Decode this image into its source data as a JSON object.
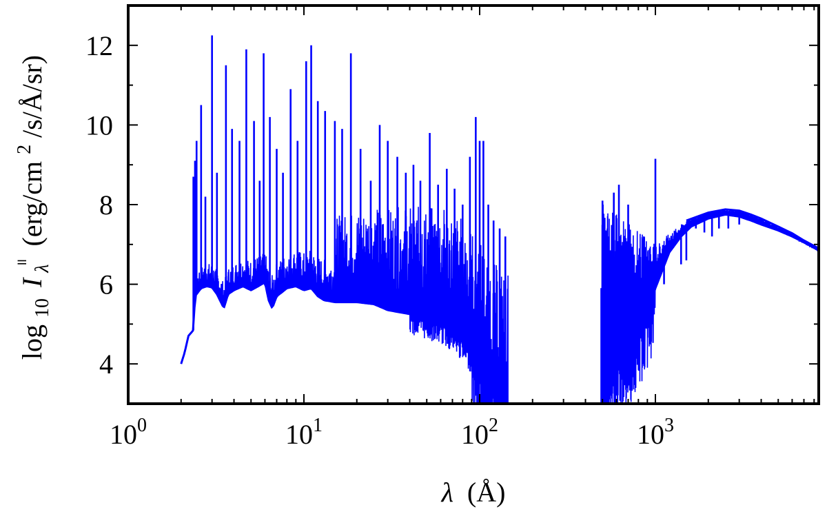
{
  "chart_data": {
    "type": "line",
    "xlabel": {
      "symbol": "λ",
      "unit": "(Å)"
    },
    "ylabel": {
      "log": "log",
      "log_sub": "10",
      "symbol": "I",
      "sub": "λ",
      "sup": "॥",
      "unit": "(erg/cm",
      "unit_sup": "2",
      "unit_rest": "/s/Å/sr)"
    },
    "xscale": "log",
    "xlim": [
      1,
      8500
    ],
    "ylim": [
      3,
      13
    ],
    "x_ticks": [
      {
        "value": 1,
        "base": "10",
        "exp": "0"
      },
      {
        "value": 10,
        "base": "10",
        "exp": "1"
      },
      {
        "value": 100,
        "base": "10",
        "exp": "2"
      },
      {
        "value": 1000,
        "base": "10",
        "exp": "3"
      }
    ],
    "y_ticks": [
      "4",
      "6",
      "8",
      "10",
      "12"
    ],
    "grid": false,
    "line_color": "#0000ff",
    "series": [
      {
        "segments": [
          {
            "continuum": [
              [
                2.0,
                4.0
              ],
              [
                2.1,
                4.3
              ],
              [
                2.2,
                4.7
              ],
              [
                2.35,
                4.85
              ],
              [
                2.4,
                5.7
              ],
              [
                2.6,
                5.9
              ],
              [
                2.8,
                5.95
              ],
              [
                3.0,
                5.92
              ],
              [
                3.2,
                5.75
              ],
              [
                3.5,
                5.4
              ],
              [
                3.7,
                5.75
              ],
              [
                4.0,
                5.85
              ],
              [
                4.5,
                5.95
              ],
              [
                5.0,
                5.85
              ],
              [
                5.5,
                5.95
              ],
              [
                6.0,
                6.05
              ],
              [
                6.3,
                5.6
              ],
              [
                6.6,
                5.4
              ],
              [
                7.0,
                5.7
              ],
              [
                7.5,
                5.8
              ],
              [
                8.0,
                5.9
              ],
              [
                9.0,
                5.95
              ],
              [
                10.0,
                5.85
              ],
              [
                11.0,
                5.9
              ],
              [
                12.0,
                5.7
              ],
              [
                13.0,
                5.6
              ],
              [
                15.0,
                5.55
              ],
              [
                20.0,
                5.55
              ],
              [
                25.0,
                5.5
              ],
              [
                30.0,
                5.35
              ],
              [
                40.0,
                5.25
              ],
              [
                50.0,
                5.1
              ],
              [
                60.0,
                5.0
              ],
              [
                70.0,
                4.8
              ],
              [
                80.0,
                4.55
              ],
              [
                90.0,
                4.25
              ],
              [
                100.0,
                3.9
              ],
              [
                110.0,
                3.5
              ],
              [
                120.0,
                3.2
              ],
              [
                130.0,
                3.0
              ],
              [
                145.0,
                2.9
              ]
            ],
            "lines": [
              [
                2.35,
                8.7
              ],
              [
                2.4,
                9.1
              ],
              [
                2.45,
                9.6
              ],
              [
                2.6,
                10.5
              ],
              [
                2.75,
                8.2
              ],
              [
                3.0,
                12.25
              ],
              [
                3.2,
                8.8
              ],
              [
                3.6,
                11.5
              ],
              [
                3.9,
                9.9
              ],
              [
                4.3,
                9.6
              ],
              [
                4.7,
                11.9
              ],
              [
                5.2,
                10.1
              ],
              [
                5.6,
                8.6
              ],
              [
                5.9,
                11.8
              ],
              [
                6.4,
                10.2
              ],
              [
                7.0,
                9.4
              ],
              [
                7.6,
                8.8
              ],
              [
                8.4,
                10.9
              ],
              [
                9.2,
                9.6
              ],
              [
                10.3,
                11.6
              ],
              [
                11.0,
                12.0
              ],
              [
                12.0,
                10.6
              ],
              [
                13.2,
                10.35
              ],
              [
                15.0,
                10.1
              ],
              [
                16.5,
                9.9
              ],
              [
                18.5,
                11.8
              ],
              [
                21.0,
                9.4
              ],
              [
                24.0,
                8.6
              ],
              [
                27.0,
                10.0
              ],
              [
                30.0,
                9.6
              ],
              [
                34.0,
                9.2
              ],
              [
                38.0,
                8.8
              ],
              [
                42.0,
                9.0
              ],
              [
                46.0,
                8.6
              ],
              [
                52.0,
                9.8
              ],
              [
                58.0,
                8.5
              ],
              [
                65.0,
                8.9
              ],
              [
                72.0,
                8.4
              ],
              [
                80.0,
                8.0
              ],
              [
                88.0,
                9.2
              ],
              [
                95.0,
                10.2
              ],
              [
                100.0,
                9.6
              ],
              [
                105.0,
                9.6
              ],
              [
                112.0,
                8.0
              ],
              [
                120.0,
                7.6
              ],
              [
                130.0,
                7.4
              ],
              [
                140.0,
                7.2
              ]
            ],
            "end_x": 145.0
          },
          {
            "continuum": [
              [
                490,
                2.9
              ],
              [
                520,
                3.2
              ],
              [
                560,
                3.6
              ],
              [
                600,
                3.9
              ],
              [
                650,
                4.2
              ],
              [
                700,
                4.4
              ],
              [
                750,
                4.6
              ],
              [
                800,
                4.8
              ],
              [
                900,
                5.3
              ],
              [
                1000,
                5.9
              ],
              [
                1200,
                6.8
              ],
              [
                1400,
                7.2
              ],
              [
                1600,
                7.45
              ],
              [
                2000,
                7.65
              ],
              [
                2500,
                7.75
              ],
              [
                3000,
                7.7
              ],
              [
                3500,
                7.6
              ],
              [
                4000,
                7.5
              ],
              [
                5000,
                7.35
              ],
              [
                6000,
                7.2
              ],
              [
                7000,
                7.05
              ],
              [
                8500,
                6.85
              ]
            ],
            "upper": [
              [
                490,
                8.1
              ],
              [
                1000,
                7.0
              ],
              [
                1500,
                7.6
              ],
              [
                2000,
                7.8
              ],
              [
                2500,
                7.88
              ],
              [
                3000,
                7.85
              ],
              [
                3500,
                7.75
              ],
              [
                4000,
                7.65
              ],
              [
                5000,
                7.45
              ],
              [
                6000,
                7.28
              ],
              [
                7000,
                7.1
              ],
              [
                8500,
                6.9
              ]
            ],
            "lines": [
              [
                500,
                8.1
              ],
              [
                540,
                7.2
              ],
              [
                580,
                8.3
              ],
              [
                620,
                8.5
              ],
              [
                660,
                6.4
              ],
              [
                700,
                8.0
              ],
              [
                740,
                6.9
              ],
              [
                800,
                6.6
              ],
              [
                860,
                7.2
              ],
              [
                930,
                6.9
              ],
              [
                1000,
                9.15
              ],
              [
                1050,
                6.6
              ],
              [
                1120,
                6.0
              ],
              [
                1200,
                6.8
              ],
              [
                1300,
                7.0
              ],
              [
                1400,
                6.5
              ],
              [
                1500,
                6.6
              ],
              [
                1700,
                7.4
              ],
              [
                1900,
                7.3
              ],
              [
                2100,
                7.2
              ],
              [
                2300,
                7.4
              ],
              [
                2600,
                7.4
              ],
              [
                3000,
                7.5
              ]
            ],
            "end_x": 8500
          }
        ]
      }
    ]
  }
}
